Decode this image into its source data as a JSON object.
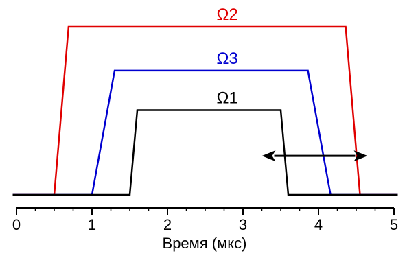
{
  "chart_data": {
    "type": "line",
    "xlabel": "Время (мкс)",
    "ylabel": "",
    "xlim": [
      0,
      5
    ],
    "ylim": [
      0,
      1.05
    ],
    "x_ticks": [
      0,
      1,
      2,
      3,
      4,
      5
    ],
    "x_tick_labels": [
      "0",
      "1",
      "2",
      "3",
      "4",
      "5"
    ],
    "x_minor_step": 0.25,
    "grid": false,
    "series": [
      {
        "name": "Ω2",
        "color": "#e00000",
        "x": [
          -0.05,
          0.5,
          0.69,
          4.36,
          4.55,
          5.05
        ],
        "y": [
          0,
          0,
          1.0,
          1.0,
          0,
          0
        ],
        "label_at": [
          2.65,
          1.04
        ]
      },
      {
        "name": "Ω3",
        "color": "#0000d0",
        "x": [
          -0.05,
          1.0,
          1.3,
          3.86,
          4.16,
          5.05
        ],
        "y": [
          0,
          0,
          0.739,
          0.739,
          0,
          0
        ],
        "label_at": [
          2.65,
          0.78
        ]
      },
      {
        "name": "Ω1",
        "color": "#000000",
        "x": [
          -0.05,
          1.5,
          1.6,
          3.5,
          3.6,
          5.05
        ],
        "y": [
          0,
          0,
          0.504,
          0.504,
          0,
          0
        ],
        "label_at": [
          2.65,
          0.545
        ]
      }
    ],
    "annotations": [
      {
        "type": "double-arrow",
        "x_start": 3.25,
        "x_end": 4.65,
        "y": 0.232,
        "color": "#000000"
      }
    ]
  }
}
